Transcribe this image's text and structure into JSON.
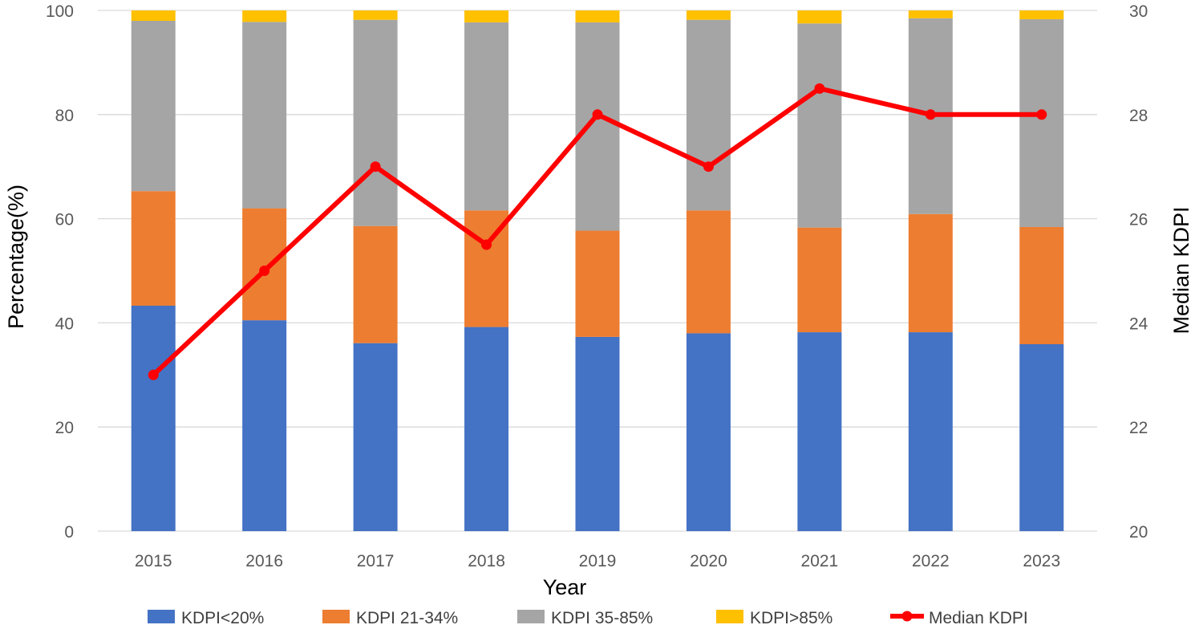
{
  "chart_data": {
    "type": "bar",
    "stacked": true,
    "categories": [
      "2015",
      "2016",
      "2017",
      "2018",
      "2019",
      "2020",
      "2021",
      "2022",
      "2023"
    ],
    "series": [
      {
        "name": "KDPI<20%",
        "color": "#4472C4",
        "values": [
          43.3,
          40.5,
          36.1,
          39.2,
          37.3,
          38.0,
          38.2,
          38.2,
          35.9
        ]
      },
      {
        "name": "KDPI 21-34%",
        "color": "#ED7D31",
        "values": [
          22.0,
          21.5,
          22.5,
          22.4,
          20.4,
          23.6,
          20.1,
          22.7,
          22.5
        ]
      },
      {
        "name": "KDPI 35-85%",
        "color": "#A5A5A5",
        "values": [
          32.7,
          35.8,
          39.6,
          36.1,
          40.0,
          36.6,
          39.2,
          37.6,
          39.9
        ]
      },
      {
        "name": "KDPI>85%",
        "color": "#FFC000",
        "values": [
          2.0,
          2.2,
          1.8,
          2.3,
          2.3,
          1.8,
          2.5,
          1.5,
          1.7
        ]
      }
    ],
    "line_series": {
      "name": "Median KDPI",
      "color": "#FF0000",
      "axis": "right",
      "values": [
        23.0,
        25.0,
        27.0,
        25.5,
        28.0,
        27.0,
        28.5,
        28.0,
        28.0
      ]
    },
    "xlabel": "Year",
    "ylabel": "Percentage(%)",
    "y2label": "Median KDPI",
    "ylim": [
      0,
      100
    ],
    "y2lim": [
      20,
      30
    ],
    "yticks": [
      "0",
      "20",
      "40",
      "60",
      "80",
      "100"
    ],
    "y2ticks": [
      "20",
      "22",
      "24",
      "26",
      "28",
      "30"
    ],
    "grid": true,
    "legend_position": "bottom"
  }
}
